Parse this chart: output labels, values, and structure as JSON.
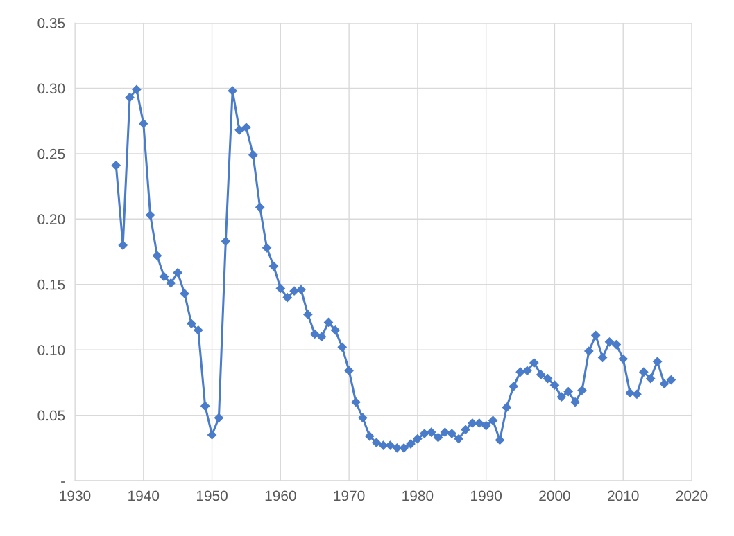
{
  "chart_data": {
    "type": "line",
    "x": [
      1936,
      1937,
      1938,
      1939,
      1940,
      1941,
      1942,
      1943,
      1944,
      1945,
      1946,
      1947,
      1948,
      1949,
      1950,
      1951,
      1952,
      1953,
      1954,
      1955,
      1956,
      1957,
      1958,
      1959,
      1960,
      1961,
      1962,
      1963,
      1964,
      1965,
      1966,
      1967,
      1968,
      1969,
      1970,
      1971,
      1972,
      1973,
      1974,
      1975,
      1976,
      1977,
      1978,
      1979,
      1980,
      1981,
      1982,
      1983,
      1984,
      1985,
      1986,
      1987,
      1988,
      1989,
      1990,
      1991,
      1992,
      1993,
      1994,
      1995,
      1996,
      1997,
      1998,
      1999,
      2000,
      2001,
      2002,
      2003,
      2004,
      2005,
      2006,
      2007,
      2008,
      2009,
      2010,
      2011,
      2012,
      2013,
      2014,
      2015,
      2016,
      2017
    ],
    "series": [
      {
        "color": "#4a7cc9",
        "values": [
          0.241,
          0.18,
          0.293,
          0.299,
          0.273,
          0.203,
          0.172,
          0.156,
          0.151,
          0.159,
          0.143,
          0.12,
          0.115,
          0.057,
          0.035,
          0.048,
          0.183,
          0.298,
          0.268,
          0.27,
          0.249,
          0.209,
          0.178,
          0.164,
          0.147,
          0.14,
          0.145,
          0.146,
          0.127,
          0.112,
          0.11,
          0.121,
          0.115,
          0.102,
          0.084,
          0.06,
          0.048,
          0.034,
          0.029,
          0.027,
          0.027,
          0.025,
          0.025,
          0.028,
          0.032,
          0.036,
          0.037,
          0.033,
          0.037,
          0.036,
          0.032,
          0.039,
          0.044,
          0.044,
          0.042,
          0.046,
          0.031,
          0.056,
          0.072,
          0.083,
          0.084,
          0.09,
          0.081,
          0.078,
          0.073,
          0.064,
          0.068,
          0.06,
          0.069,
          0.099,
          0.111,
          0.094,
          0.106,
          0.104,
          0.093,
          0.067,
          0.066,
          0.083,
          0.078,
          0.091,
          0.074,
          0.077
        ]
      }
    ],
    "xlim": [
      1930,
      2020
    ],
    "xticks": [
      1930,
      1940,
      1950,
      1960,
      1970,
      1980,
      1990,
      2000,
      2010,
      2020
    ],
    "ylim": [
      0,
      0.35
    ],
    "yticks": [
      {
        "value": 0,
        "label": "-"
      },
      {
        "value": 0.05,
        "label": "0.05"
      },
      {
        "value": 0.1,
        "label": "0.10"
      },
      {
        "value": 0.15,
        "label": "0.15"
      },
      {
        "value": 0.2,
        "label": "0.20"
      },
      {
        "value": 0.25,
        "label": "0.25"
      },
      {
        "value": 0.3,
        "label": "0.30"
      },
      {
        "value": 0.35,
        "label": "0.35"
      }
    ],
    "grid": true,
    "marker": "diamond",
    "line_style": "solid",
    "legend": false
  }
}
